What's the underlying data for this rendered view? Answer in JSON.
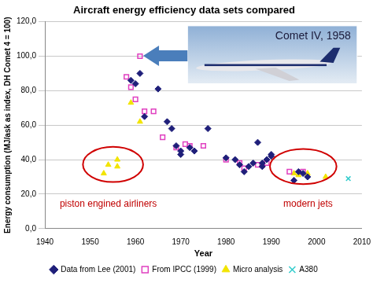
{
  "chart_data": {
    "type": "scatter",
    "title": "Aircraft energy efficiency data sets compared",
    "x_label": "Year",
    "y_label": "Energy consumption (MJ/ask as index, DH Comet 4 = 100)",
    "xlim": [
      1940,
      2010
    ],
    "xticks": [
      1940,
      1950,
      1960,
      1970,
      1980,
      1990,
      2000,
      2010
    ],
    "ylim": [
      0,
      120
    ],
    "yticks": [
      {
        "value": 0,
        "label": "0,0"
      },
      {
        "value": 20,
        "label": "20,0"
      },
      {
        "value": 40,
        "label": "40,0"
      },
      {
        "value": 60,
        "label": "60,0"
      },
      {
        "value": 80,
        "label": "80,0"
      },
      {
        "value": 100,
        "label": "100,0"
      },
      {
        "value": 120,
        "label": "120,0"
      }
    ],
    "grid": "y",
    "legend": "bottom",
    "series": [
      {
        "name": "Data from Lee (2001)",
        "color": "#1f1f7a",
        "marker": "diamond",
        "x": [
          1959,
          1960,
          1961,
          1962,
          1965,
          1967,
          1968,
          1969,
          1970,
          1970,
          1972,
          1973,
          1976,
          1980,
          1982,
          1983,
          1984,
          1985,
          1986,
          1987,
          1988,
          1988,
          1989,
          1990,
          1990,
          1995,
          1996,
          1997,
          1998
        ],
        "values": [
          86,
          84,
          90,
          65,
          81,
          62,
          58,
          48,
          45,
          43,
          47,
          45,
          58,
          41,
          40,
          37,
          33,
          36,
          38,
          50,
          38,
          36,
          40,
          43,
          42,
          28,
          33,
          32,
          30
        ]
      },
      {
        "name": "From IPCC (1999)",
        "color": "#e040c0",
        "marker": "open_square",
        "x": [
          1958,
          1959,
          1960,
          1961,
          1962,
          1964,
          1966,
          1969,
          1971,
          1972,
          1975,
          1980,
          1983,
          1984,
          1987,
          1988,
          1989,
          1994,
          1997
        ],
        "values": [
          88,
          82,
          75,
          100,
          68,
          68,
          53,
          47,
          49,
          48,
          48,
          40,
          38,
          35,
          37,
          37,
          38,
          33,
          33
        ]
      },
      {
        "name": "Micro analysis",
        "color": "#f2e400",
        "marker": "triangle",
        "x": [
          1953,
          1954,
          1956,
          1956,
          1959,
          1961,
          1995,
          1996,
          1998,
          2002
        ],
        "values": [
          32,
          37,
          36,
          40,
          73,
          62,
          32,
          31,
          32,
          30
        ]
      },
      {
        "name": "A380",
        "color": "#33cccc",
        "marker": "x",
        "x": [
          2007
        ],
        "values": [
          29
        ]
      }
    ],
    "annotations": [
      "piston engined airliners",
      "modern jets",
      "Comet IV, 1958"
    ]
  }
}
